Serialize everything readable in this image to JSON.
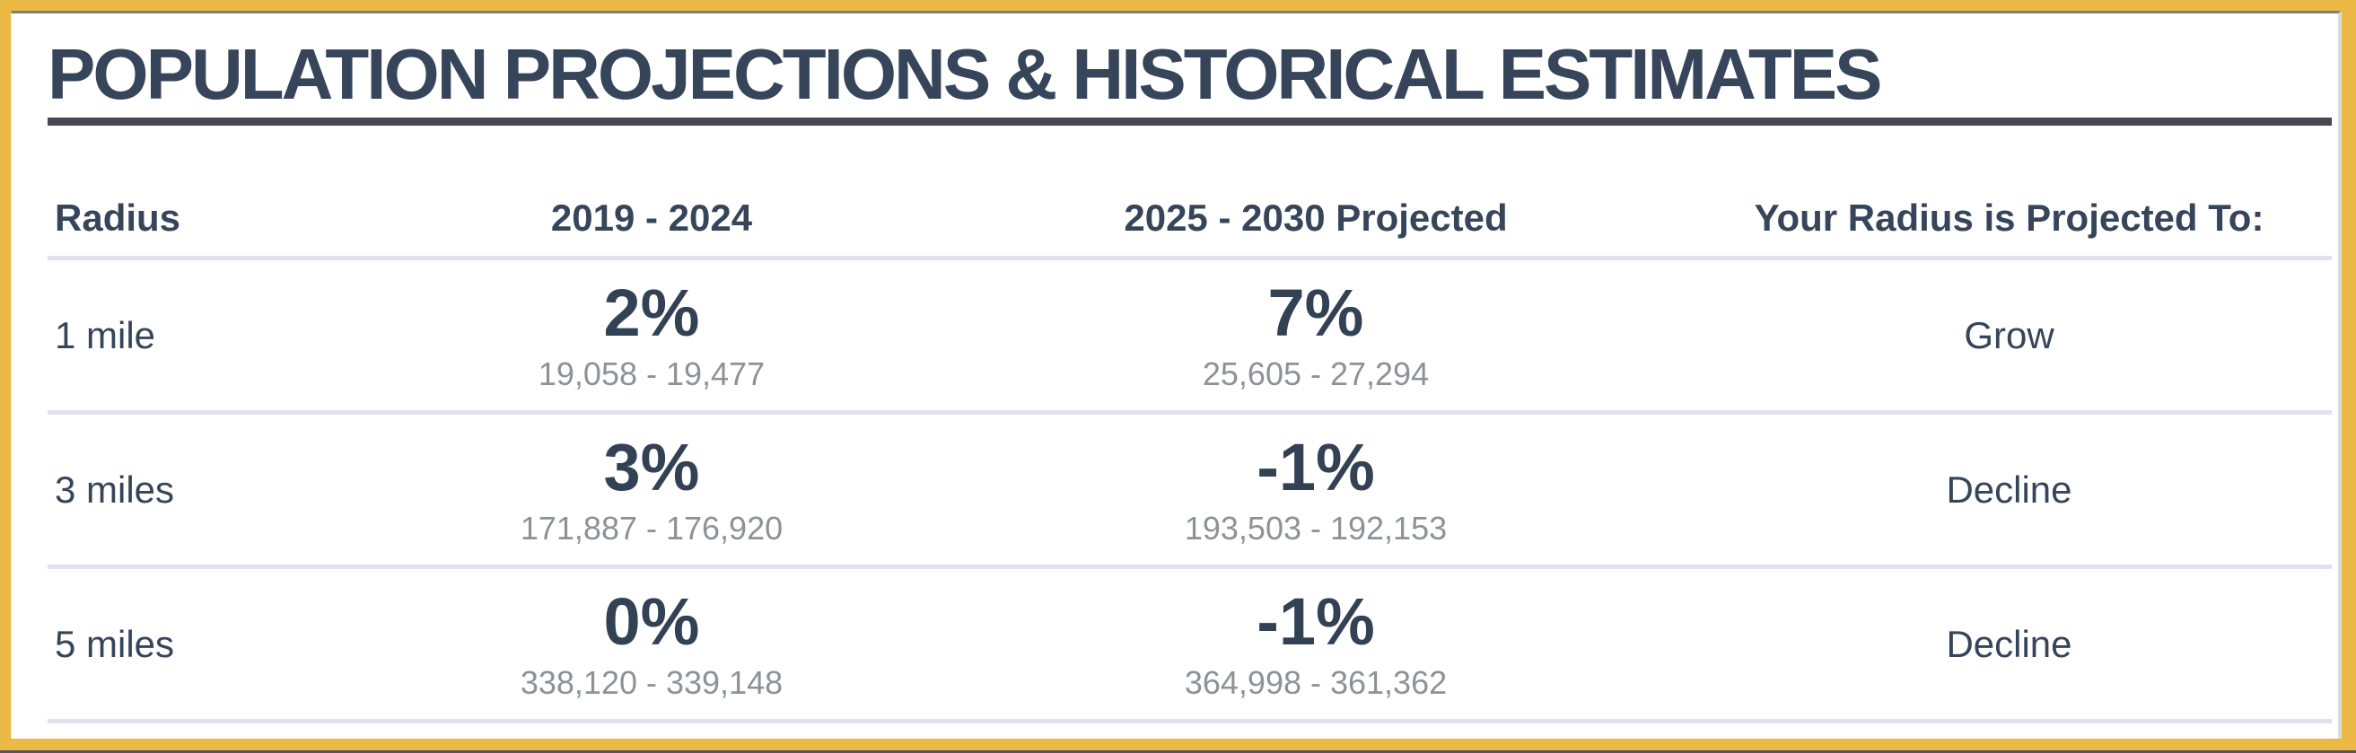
{
  "page": {
    "title": "POPULATION PROJECTIONS & HISTORICAL ESTIMATES"
  },
  "table": {
    "columns": [
      "Radius",
      "2019 - 2024",
      "2025 - 2030 Projected",
      "Your Radius is Projected To:"
    ],
    "rows": [
      {
        "radius": "1 mile",
        "hist_pct": "2%",
        "hist_range": "19,058 - 19,477",
        "proj_pct": "7%",
        "proj_range": "25,605 - 27,294",
        "outlook": "Grow"
      },
      {
        "radius": "3 miles",
        "hist_pct": "3%",
        "hist_range": "171,887 - 176,920",
        "proj_pct": "-1%",
        "proj_range": "193,503 - 192,153",
        "outlook": "Decline"
      },
      {
        "radius": "5 miles",
        "hist_pct": "0%",
        "hist_range": "338,120 - 339,148",
        "proj_pct": "-1%",
        "proj_range": "364,998 - 361,362",
        "outlook": "Decline"
      }
    ]
  },
  "chart_data": {
    "type": "table",
    "title": "POPULATION PROJECTIONS & HISTORICAL ESTIMATES",
    "columns": [
      "Radius",
      "2019 - 2024",
      "2025 - 2030 Projected",
      "Your Radius is Projected To:"
    ],
    "rows": [
      {
        "radius": "1 mile",
        "historical_pct_change": 2,
        "historical_population_start": 19058,
        "historical_population_end": 19477,
        "projected_pct_change": 7,
        "projected_population_start": 25605,
        "projected_population_end": 27294,
        "outlook": "Grow"
      },
      {
        "radius": "3 miles",
        "historical_pct_change": 3,
        "historical_population_start": 171887,
        "historical_population_end": 176920,
        "projected_pct_change": -1,
        "projected_population_start": 193503,
        "projected_population_end": 192153,
        "outlook": "Decline"
      },
      {
        "radius": "5 miles",
        "historical_pct_change": 0,
        "historical_population_start": 338120,
        "historical_population_end": 339148,
        "projected_pct_change": -1,
        "projected_population_start": 364998,
        "projected_population_end": 361362,
        "outlook": "Decline"
      }
    ]
  },
  "colors": {
    "frame_gold": "#ecb945",
    "heading_navy": "#36455a",
    "title_underline": "#4a4653",
    "row_separator": "#e2e1ee",
    "range_gray": "#8c9398"
  }
}
